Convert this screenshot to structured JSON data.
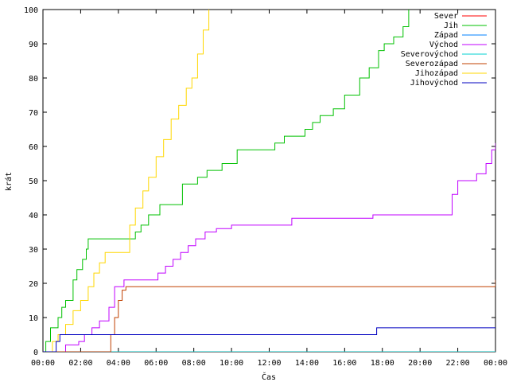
{
  "chart_data": {
    "type": "line",
    "xlabel": "Čas",
    "ylabel": "krát",
    "ylim": [
      0,
      100
    ],
    "yticks": [
      0,
      10,
      20,
      30,
      40,
      50,
      60,
      70,
      80,
      90,
      100
    ],
    "xlim": [
      0,
      24
    ],
    "xticks": [
      {
        "v": 0,
        "label": "00:00"
      },
      {
        "v": 2,
        "label": "02:00"
      },
      {
        "v": 4,
        "label": "04:00"
      },
      {
        "v": 6,
        "label": "06:00"
      },
      {
        "v": 8,
        "label": "08:00"
      },
      {
        "v": 10,
        "label": "10:00"
      },
      {
        "v": 12,
        "label": "12:00"
      },
      {
        "v": 14,
        "label": "14:00"
      },
      {
        "v": 16,
        "label": "16:00"
      },
      {
        "v": 18,
        "label": "18:00"
      },
      {
        "v": 20,
        "label": "20:00"
      },
      {
        "v": 22,
        "label": "22:00"
      },
      {
        "v": 24,
        "label": "00:00"
      }
    ],
    "grid": false,
    "legend_position": "top-right",
    "series": [
      {
        "name": "Sever",
        "color": "#ff0000",
        "x": [
          0,
          24
        ],
        "y": [
          0,
          0
        ]
      },
      {
        "name": "Jih",
        "color": "#00c000",
        "x": [
          0,
          0.15,
          0.4,
          0.8,
          1.0,
          1.2,
          1.6,
          1.8,
          2.1,
          2.3,
          2.4,
          4.5,
          4.9,
          5.2,
          5.6,
          6.2,
          6.8,
          7.4,
          7.8,
          8.2,
          8.7,
          9.5,
          10.3,
          11.0,
          11.5,
          12.3,
          12.8,
          13.5,
          13.9,
          14.3,
          14.7,
          15.4,
          16.0,
          16.8,
          17.3,
          17.8,
          18.1,
          18.6,
          19.1,
          19.4
        ],
        "y": [
          0,
          3,
          7,
          10,
          13,
          15,
          21,
          24,
          27,
          30,
          33,
          33,
          35,
          37,
          40,
          43,
          43,
          49,
          49,
          51,
          53,
          55,
          59,
          59,
          59,
          61,
          63,
          63,
          65,
          67,
          69,
          71,
          75,
          80,
          83,
          88,
          90,
          92,
          95,
          100
        ]
      },
      {
        "name": "Západ",
        "color": "#0080ff",
        "x": [
          0,
          24
        ],
        "y": [
          0,
          0
        ]
      },
      {
        "name": "Východ",
        "color": "#c000ff",
        "x": [
          0,
          1.2,
          1.9,
          2.2,
          2.6,
          3.0,
          3.5,
          3.8,
          4.3,
          4.7,
          5.5,
          6.1,
          6.5,
          6.9,
          7.3,
          7.7,
          8.1,
          8.6,
          9.2,
          10.0,
          11.5,
          12.8,
          13.2,
          13.8,
          16.5,
          17.5,
          19.0,
          21.7,
          22.0,
          22.5,
          23.0,
          23.5,
          23.8,
          24.0
        ],
        "y": [
          0,
          2,
          3,
          5,
          7,
          9,
          13,
          19,
          21,
          21,
          21,
          23,
          25,
          27,
          29,
          31,
          33,
          35,
          36,
          37,
          37,
          37,
          39,
          39,
          39,
          40,
          40,
          46,
          50,
          50,
          52,
          55,
          59,
          61
        ]
      },
      {
        "name": "Severovýchod",
        "color": "#00d0d0",
        "x": [
          0,
          24
        ],
        "y": [
          0,
          0
        ]
      },
      {
        "name": "Severozápad",
        "color": "#c04000",
        "x": [
          0,
          3.5,
          3.6,
          3.8,
          4.0,
          4.2,
          4.4,
          4.6,
          23.8,
          24.0
        ],
        "y": [
          0,
          0,
          5,
          10,
          15,
          18,
          19,
          19,
          19,
          21
        ]
      },
      {
        "name": "Jihozápad",
        "color": "#ffd700",
        "x": [
          0,
          0.5,
          0.8,
          1.2,
          1.6,
          2.0,
          2.4,
          2.7,
          3.0,
          3.3,
          4.3,
          4.6,
          4.9,
          5.3,
          5.6,
          6.0,
          6.4,
          6.8,
          7.2,
          7.6,
          7.9,
          8.2,
          8.5,
          8.8
        ],
        "y": [
          0,
          3,
          5,
          8,
          12,
          15,
          19,
          23,
          26,
          29,
          29,
          37,
          42,
          47,
          51,
          57,
          62,
          68,
          72,
          77,
          80,
          87,
          94,
          100
        ]
      },
      {
        "name": "Jihovýchod",
        "color": "#0000c0",
        "x": [
          0,
          0.6,
          0.7,
          0.9,
          17.6,
          17.7,
          24
        ],
        "y": [
          0,
          0,
          3,
          5,
          5,
          7,
          7
        ]
      }
    ]
  }
}
